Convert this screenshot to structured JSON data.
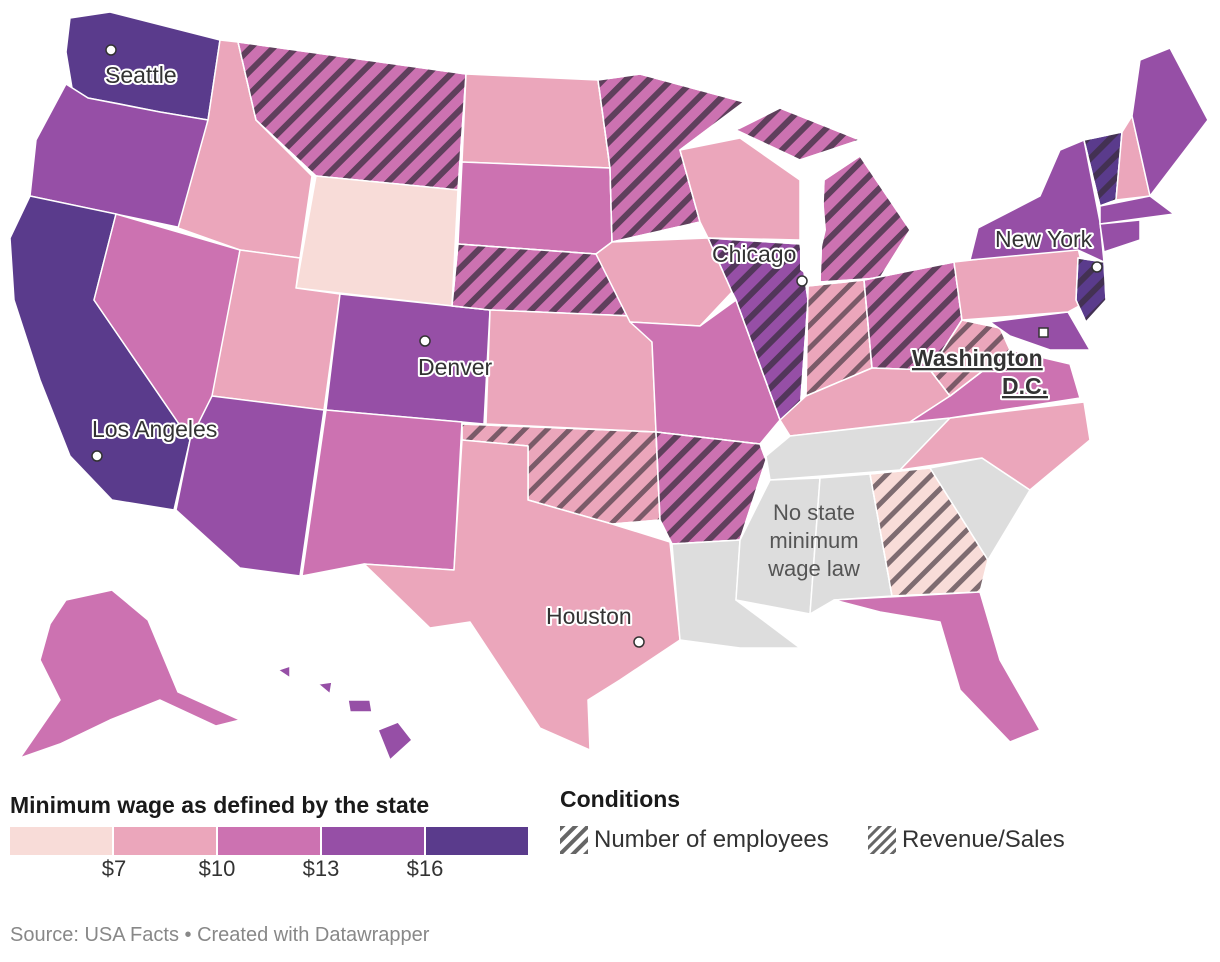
{
  "legend": {
    "wage_title": "Minimum wage as defined by the state",
    "wage_ticks": [
      "$7",
      "$10",
      "$13",
      "$16"
    ],
    "wage_colors": [
      "#f8dcd8",
      "#eba6bb",
      "#cc72b1",
      "#964fa6",
      "#5a3b8c"
    ],
    "conditions_title": "Conditions",
    "conditions": [
      {
        "label": "Number of employees",
        "pattern": "dense-diagonal-hatch"
      },
      {
        "label": "Revenue/Sales",
        "pattern": "fine-diagonal-hatch"
      }
    ]
  },
  "no_law_label": [
    "No state",
    "minimum",
    "wage law"
  ],
  "no_law_color": "#dddddd",
  "cities": [
    {
      "name": "Seattle"
    },
    {
      "name": "Los Angeles"
    },
    {
      "name": "Denver"
    },
    {
      "name": "Houston"
    },
    {
      "name": "Chicago"
    },
    {
      "name": "New York"
    }
  ],
  "capital": [
    "Washington",
    "D.C."
  ],
  "source": "Source: USA Facts • Created with Datawrapper"
}
